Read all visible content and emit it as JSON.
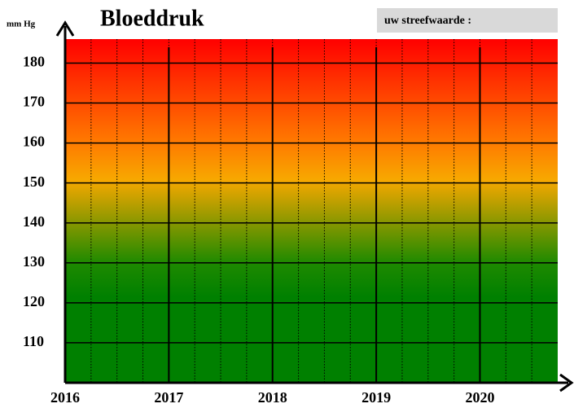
{
  "chart_data": {
    "type": "line",
    "title": "Bloeddruk",
    "y_label": "mm Hg",
    "annotation": "uw streefwaarde :",
    "xlim": [
      2016,
      2020.75
    ],
    "xticks": [
      2016,
      2017,
      2018,
      2019,
      2020
    ],
    "ylim": [
      100,
      186
    ],
    "yticks": [
      110,
      120,
      130,
      140,
      150,
      160,
      170,
      180
    ],
    "grid": true
  }
}
